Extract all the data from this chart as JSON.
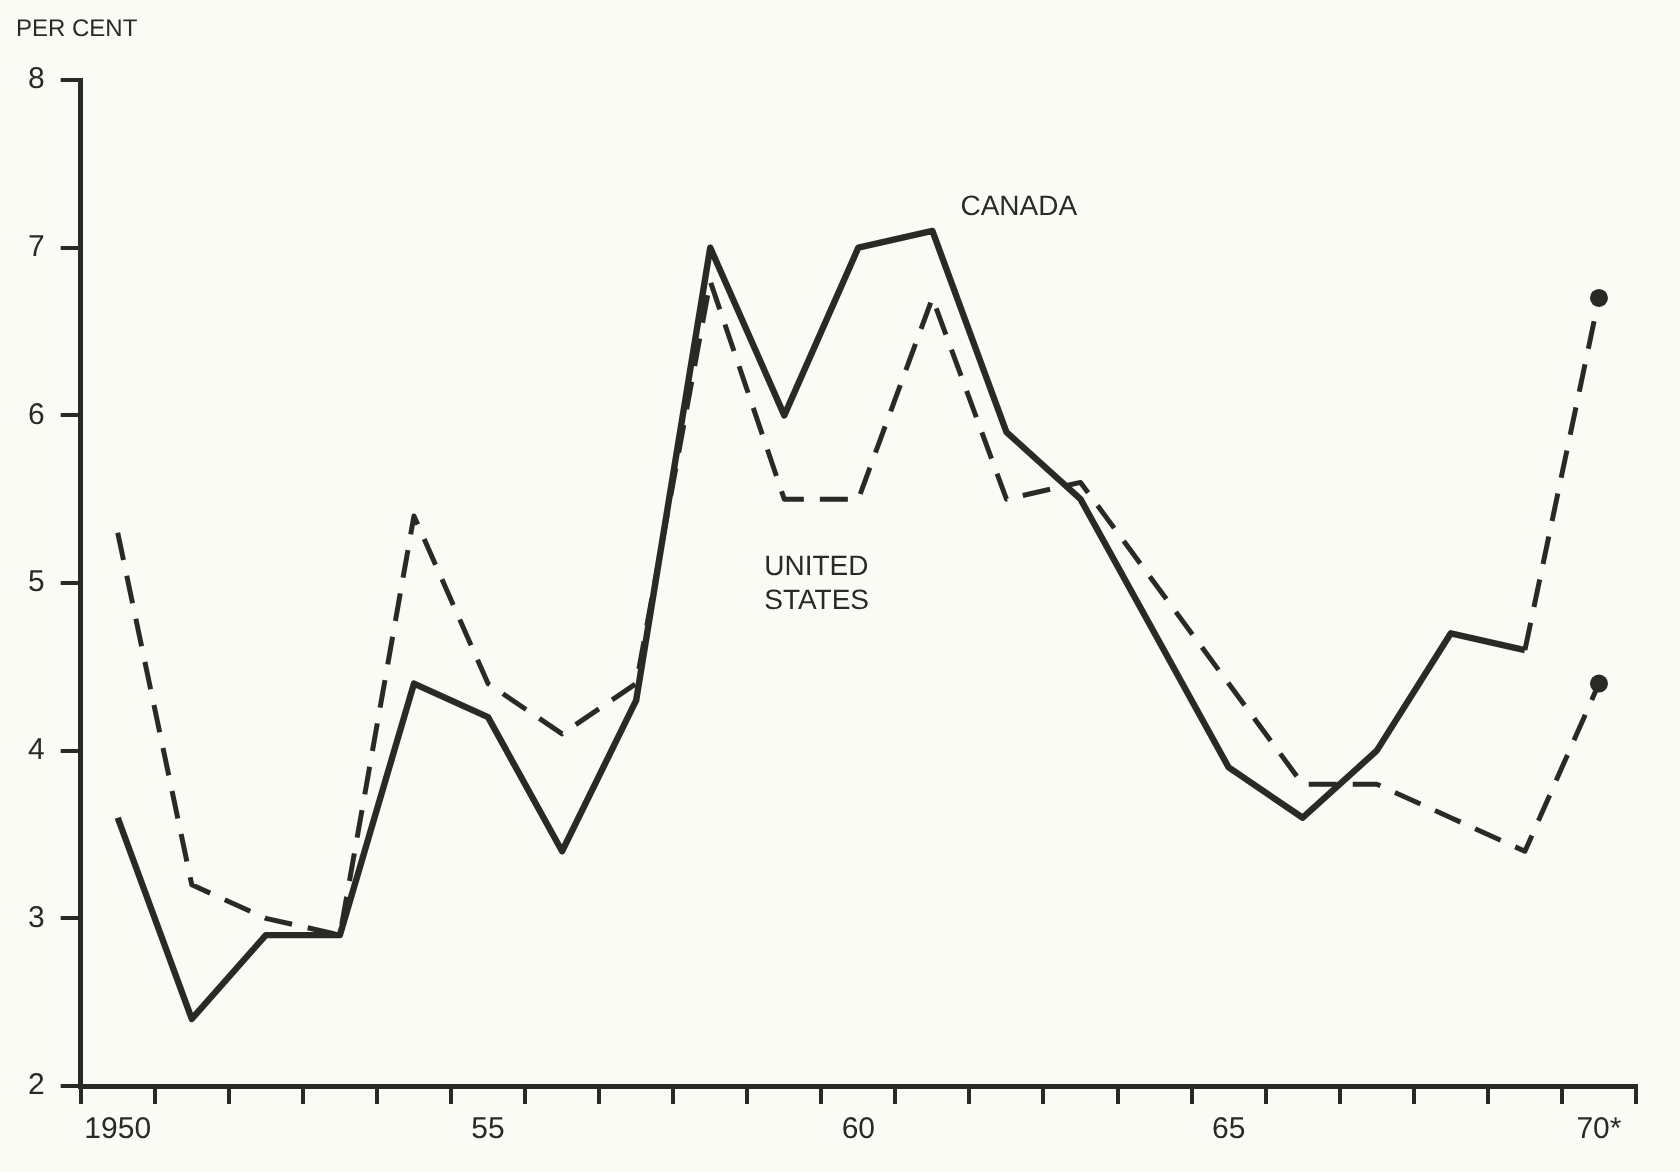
{
  "chart_data": {
    "type": "line",
    "ylabel": "PER CENT",
    "categories": [
      "1950",
      null,
      null,
      null,
      null,
      "55",
      null,
      null,
      null,
      null,
      "60",
      null,
      null,
      null,
      null,
      "65",
      null,
      null,
      null,
      null,
      "70*"
    ],
    "ylim": [
      2,
      8
    ],
    "yticks": [
      2,
      3,
      4,
      5,
      6,
      7,
      8
    ],
    "grid": false,
    "legend": false,
    "series": [
      {
        "name": "CANADA",
        "color": "#2b2926",
        "line_style": "solid",
        "marker": "none",
        "values": [
          3.6,
          2.4,
          2.9,
          2.9,
          4.4,
          4.2,
          3.4,
          4.3,
          7.0,
          6.0,
          7.0,
          7.1,
          5.9,
          5.5,
          4.7,
          3.9,
          3.6,
          4.0,
          4.7,
          4.6,
          null
        ]
      },
      {
        "name": "UNITED STATES",
        "color": "#2b2926",
        "line_style": "dashed",
        "marker": "none",
        "values": [
          5.3,
          3.2,
          3.0,
          2.9,
          5.4,
          4.4,
          4.1,
          4.4,
          6.8,
          5.5,
          5.5,
          6.7,
          5.5,
          5.6,
          5.0,
          4.4,
          3.8,
          3.8,
          3.6,
          3.4,
          4.4
        ]
      },
      {
        "color": "#2b2926",
        "line_style": "dashed",
        "marker": "none",
        "values": [
          null,
          null,
          null,
          null,
          null,
          null,
          null,
          null,
          null,
          null,
          null,
          null,
          null,
          null,
          null,
          null,
          null,
          null,
          null,
          4.6,
          6.7
        ]
      },
      {
        "type": "scatter",
        "color": "#2b2926",
        "marker": "circle",
        "values": [
          null,
          null,
          null,
          null,
          null,
          null,
          null,
          null,
          null,
          null,
          null,
          null,
          null,
          null,
          null,
          null,
          null,
          null,
          null,
          null,
          6.7
        ]
      },
      {
        "type": "scatter",
        "color": "#2b2926",
        "marker": "circle",
        "values": [
          null,
          null,
          null,
          null,
          null,
          null,
          null,
          null,
          null,
          null,
          null,
          null,
          null,
          null,
          null,
          null,
          null,
          null,
          null,
          null,
          4.4
        ]
      }
    ]
  }
}
